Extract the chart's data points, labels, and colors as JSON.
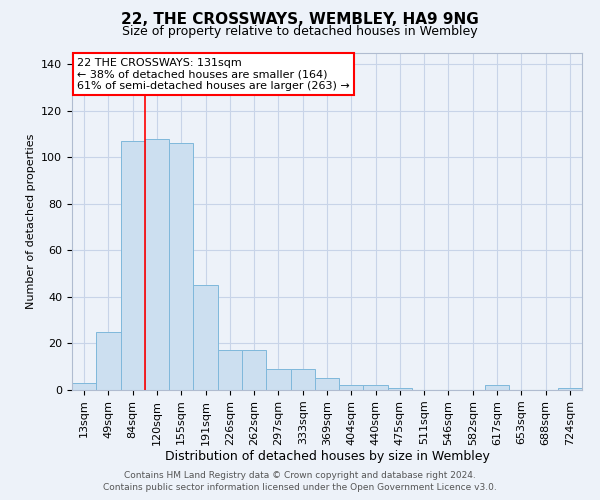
{
  "title": "22, THE CROSSWAYS, WEMBLEY, HA9 9NG",
  "subtitle": "Size of property relative to detached houses in Wembley",
  "xlabel": "Distribution of detached houses by size in Wembley",
  "ylabel": "Number of detached properties",
  "footer_line1": "Contains HM Land Registry data © Crown copyright and database right 2024.",
  "footer_line2": "Contains public sector information licensed under the Open Government Licence v3.0.",
  "bin_labels": [
    "13sqm",
    "49sqm",
    "84sqm",
    "120sqm",
    "155sqm",
    "191sqm",
    "226sqm",
    "262sqm",
    "297sqm",
    "333sqm",
    "369sqm",
    "404sqm",
    "440sqm",
    "475sqm",
    "511sqm",
    "546sqm",
    "582sqm",
    "617sqm",
    "653sqm",
    "688sqm",
    "724sqm"
  ],
  "bar_values": [
    3,
    25,
    107,
    108,
    106,
    45,
    17,
    17,
    9,
    9,
    5,
    2,
    2,
    1,
    0,
    0,
    0,
    2,
    0,
    0,
    1
  ],
  "bar_color": "#ccdff0",
  "bar_edge_color": "#7fb8db",
  "grid_color": "#c8d4e8",
  "background_color": "#edf2f9",
  "annotation_text": "22 THE CROSSWAYS: 131sqm\n← 38% of detached houses are smaller (164)\n61% of semi-detached houses are larger (263) →",
  "annotation_box_color": "white",
  "annotation_box_edge_color": "red",
  "red_line_x": 3.0,
  "ylim": [
    0,
    145
  ],
  "yticks": [
    0,
    20,
    40,
    60,
    80,
    100,
    120,
    140
  ],
  "title_fontsize": 11,
  "subtitle_fontsize": 9,
  "ylabel_fontsize": 8,
  "xlabel_fontsize": 9,
  "tick_fontsize": 8,
  "annotation_fontsize": 8,
  "footer_fontsize": 6.5
}
